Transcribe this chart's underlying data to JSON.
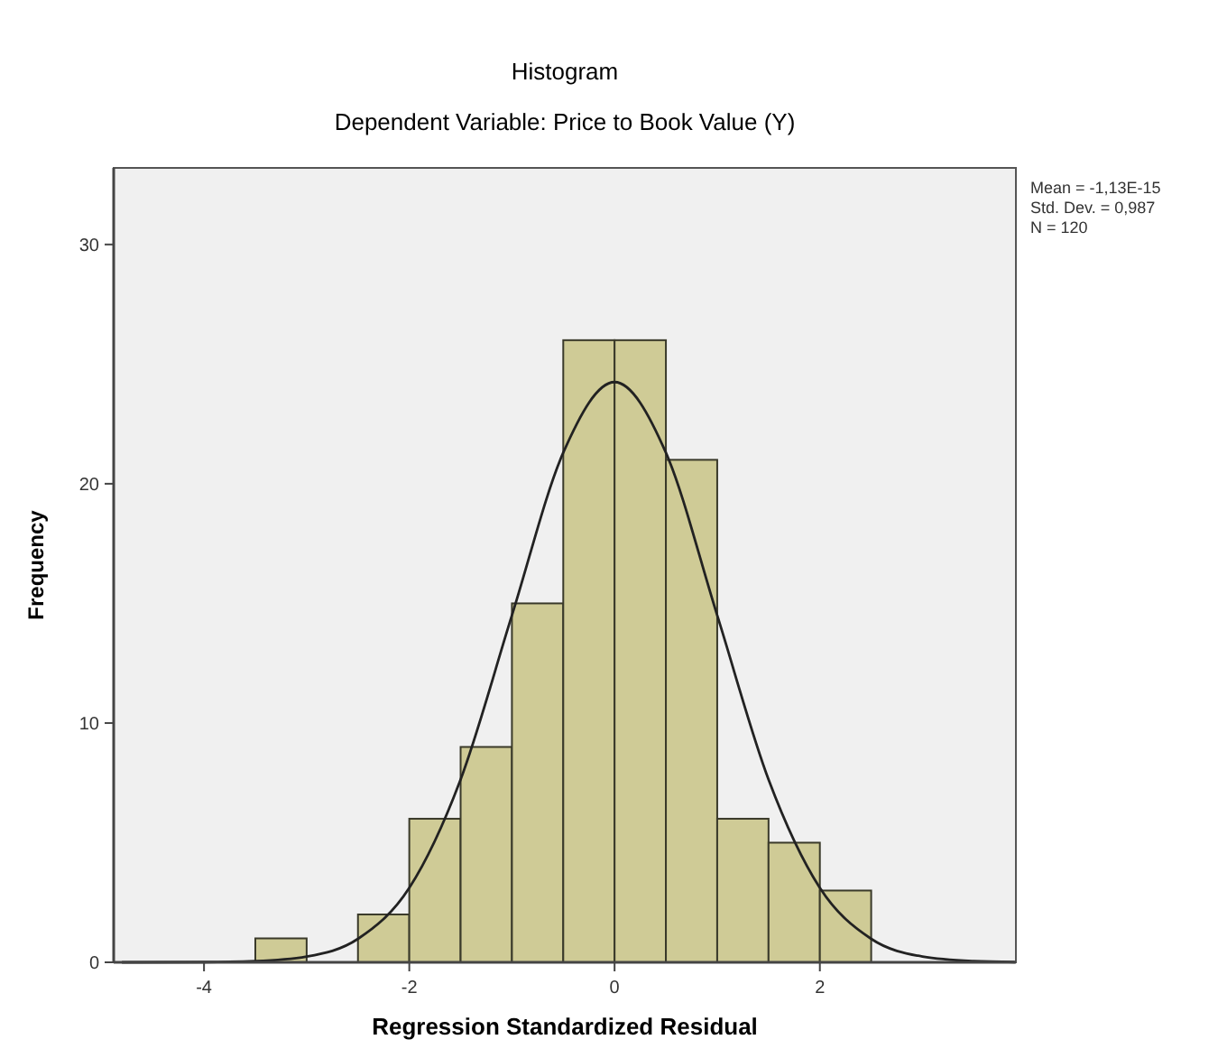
{
  "chart_data": {
    "type": "histogram",
    "title": "Histogram",
    "subtitle": "Dependent Variable: Price to Book Value (Y)",
    "xlabel": "Regression Standardized Residual",
    "ylabel": "Frequency",
    "annotations": [
      "Mean = -1,13E-15",
      "Std. Dev. = 0,987",
      "N = 120"
    ],
    "xlim": [
      -4.88,
      3.91
    ],
    "xticks": [
      -4,
      -2,
      0,
      2
    ],
    "ylim": [
      0,
      33.2
    ],
    "yticks": [
      0,
      10,
      20,
      30
    ],
    "grid": false,
    "series": [
      {
        "color": "#cfcb96",
        "bins": [
          -3.5,
          -3,
          -2.5,
          -2,
          -1.5,
          -1,
          -0.5,
          0,
          0.5,
          1,
          1.5,
          2,
          2.5
        ],
        "values": [
          1,
          0,
          2,
          6,
          9,
          15,
          26,
          26,
          21,
          6,
          5,
          3
        ]
      },
      {
        "type": "line",
        "color": "#222222",
        "marker": "none",
        "line_style": "solid",
        "x": [
          -4.8,
          -4,
          -3.5,
          -3,
          -2.5,
          -2,
          -1.5,
          -1,
          -0.5,
          0,
          0.5,
          1,
          1.5,
          2,
          2.5,
          3,
          3.5,
          3.9
        ],
        "values": [
          0,
          0.01,
          0.05,
          0.24,
          0.98,
          3.11,
          7.64,
          14.5,
          21.3,
          24.25,
          21.3,
          14.5,
          7.64,
          3.11,
          0.98,
          0.24,
          0.05,
          0.01
        ]
      }
    ]
  }
}
